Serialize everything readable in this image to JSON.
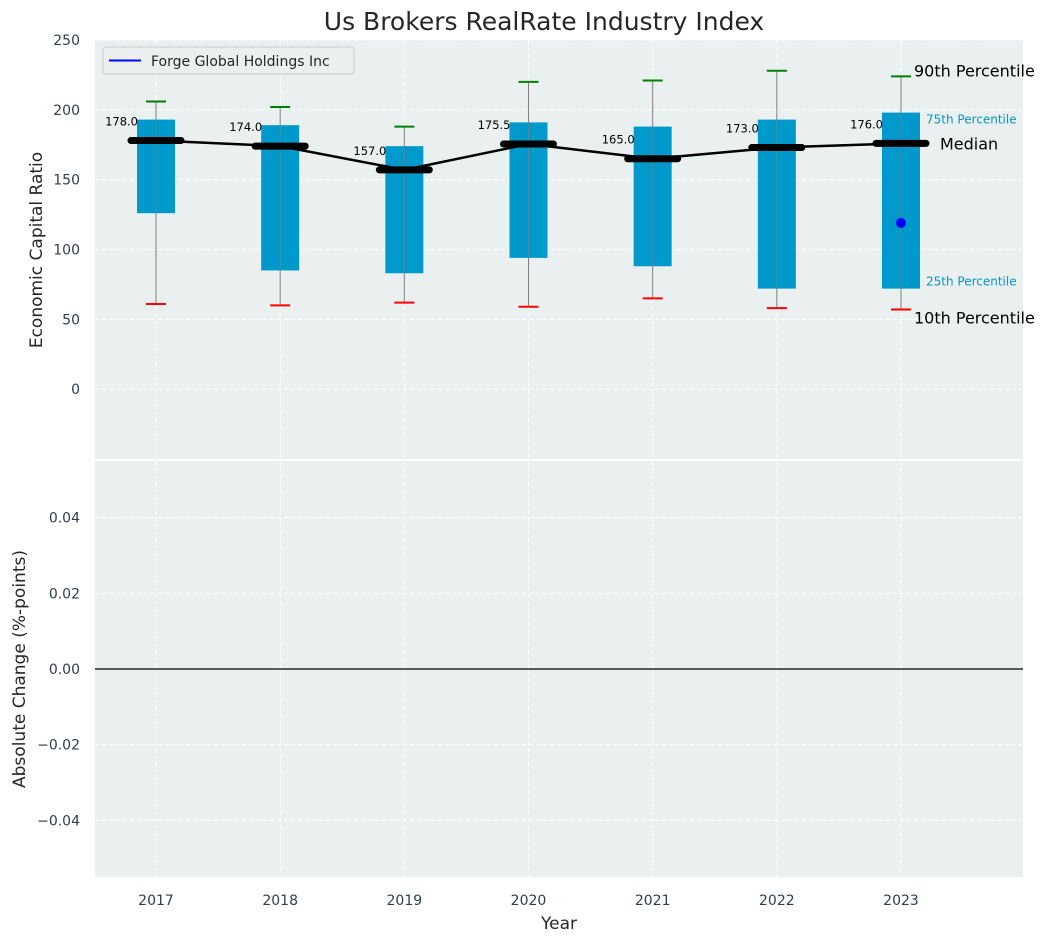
{
  "chart_data": {
    "type": "box",
    "title": "Us Brokers RealRate Industry Index",
    "xlabel": "Year",
    "categories": [
      "2017",
      "2018",
      "2019",
      "2020",
      "2021",
      "2022",
      "2023"
    ],
    "top_panel": {
      "ylabel": "Economic Capital Ratio",
      "ylim": [
        -50,
        250
      ],
      "yticks": [
        0,
        50,
        100,
        150,
        200,
        250
      ],
      "series": [
        {
          "year": "2017",
          "p10": 61,
          "p25": 126,
          "median": 178.0,
          "p75": 193,
          "p90": 206,
          "median_label": "178.0"
        },
        {
          "year": "2018",
          "p10": 60,
          "p25": 85,
          "median": 174.0,
          "p75": 189,
          "p90": 202,
          "median_label": "174.0"
        },
        {
          "year": "2019",
          "p10": 62,
          "p25": 83,
          "median": 157.0,
          "p75": 174,
          "p90": 188,
          "median_label": "157.0"
        },
        {
          "year": "2020",
          "p10": 59,
          "p25": 94,
          "median": 175.5,
          "p75": 191,
          "p90": 220,
          "median_label": "175.5"
        },
        {
          "year": "2021",
          "p10": 65,
          "p25": 88,
          "median": 165.0,
          "p75": 188,
          "p90": 221,
          "median_label": "165.0"
        },
        {
          "year": "2022",
          "p10": 58,
          "p25": 72,
          "median": 173.0,
          "p75": 193,
          "p90": 228,
          "median_label": "173.0"
        },
        {
          "year": "2023",
          "p10": 57,
          "p25": 72,
          "median": 176.0,
          "p75": 198,
          "p90": 224,
          "median_label": "176.0"
        }
      ],
      "company_points": [
        {
          "year": "2023",
          "value": 119
        }
      ],
      "legend": {
        "entries": [
          "Forge Global Holdings Inc"
        ],
        "placement": "upper-left"
      },
      "annotations": {
        "p90": "90th Percentile",
        "p75": "75th Percentile",
        "median": "Median",
        "p25": "25th Percentile",
        "p10": "10th Percentile"
      }
    },
    "bottom_panel": {
      "ylabel": "Absolute Change (%-points)",
      "ylim": [
        -0.055,
        0.055
      ],
      "yticks": [
        -0.04,
        -0.02,
        0.0,
        0.02,
        0.04
      ],
      "ytick_labels": [
        "−0.04",
        "−0.02",
        "0.00",
        "0.02",
        "0.04"
      ],
      "reference_line": 0
    },
    "grid": true,
    "colors": {
      "background": "#eaeff0",
      "box": "#0099cc",
      "whisker": "#808080",
      "p90_cap": "#008000",
      "p10_cap": "#ff0000",
      "median": "#000000",
      "company": "#0000ff",
      "p75_p25_text": "#0099cc",
      "tick_text": "#2c3e50"
    }
  }
}
